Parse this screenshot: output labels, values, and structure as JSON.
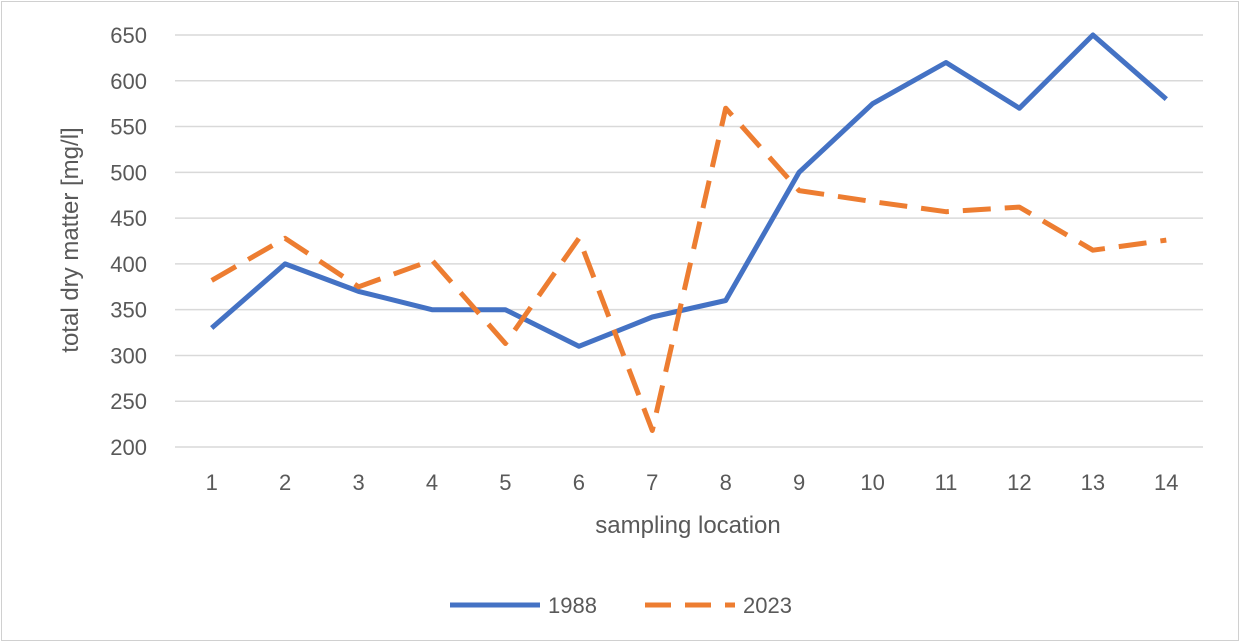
{
  "chart_data": {
    "type": "line",
    "title": "",
    "xlabel": "sampling location",
    "ylabel": "total dry matter [mg/l]",
    "categories": [
      "1",
      "2",
      "3",
      "4",
      "5",
      "6",
      "7",
      "8",
      "9",
      "10",
      "11",
      "12",
      "13",
      "14"
    ],
    "ylim": [
      200,
      650
    ],
    "yticks": [
      200,
      250,
      300,
      350,
      400,
      450,
      500,
      550,
      600,
      650
    ],
    "grid": true,
    "legend_position": "bottom",
    "series": [
      {
        "name": "1988",
        "color": "#4472C4",
        "dash": "solid",
        "values": [
          330,
          400,
          370,
          350,
          350,
          310,
          342,
          360,
          500,
          575,
          620,
          570,
          650,
          580
        ]
      },
      {
        "name": "2023",
        "color": "#ED7D31",
        "dash": "dashed",
        "values": [
          382,
          428,
          375,
          404,
          313,
          428,
          218,
          570,
          480,
          468,
          457,
          462,
          415,
          426
        ]
      }
    ]
  }
}
